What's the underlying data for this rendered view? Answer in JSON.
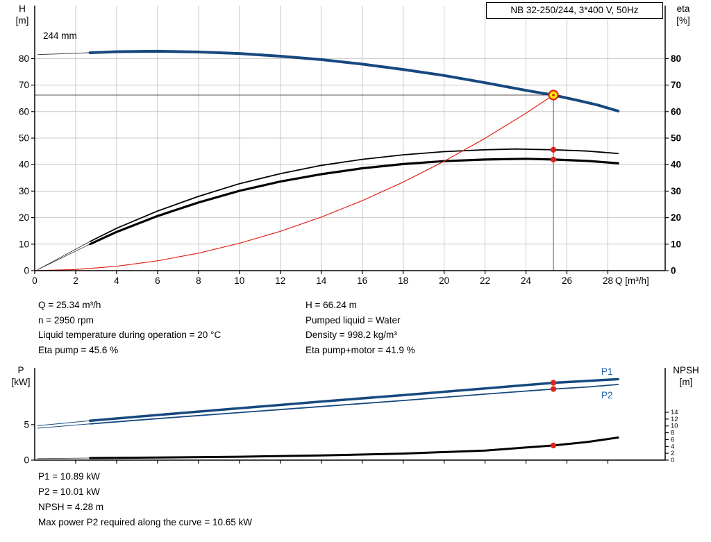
{
  "title_box": "NB 32-250/244, 3*400 V, 50Hz",
  "labels": {
    "top_left_axis": [
      "H",
      "[m]"
    ],
    "top_right_axis": [
      "eta",
      "[%]"
    ],
    "x_axis": "Q [m³/h]",
    "curve_size": "244 mm",
    "p1": "P1",
    "p2": "P2",
    "bottom_left_axis": [
      "P",
      "[kW]"
    ],
    "bottom_right_axis": [
      "NPSH",
      "[m]"
    ]
  },
  "info": {
    "left": [
      "Q = 25.34 m³/h",
      "n = 2950 rpm",
      "Liquid temperature during operation = 20 °C",
      "Eta pump = 45.6 %"
    ],
    "right": [
      "H = 66.24 m",
      "Pumped liquid = Water",
      "Density = 998.2 kg/m³",
      "Eta pump+motor = 41.9 %"
    ]
  },
  "footer": [
    "P1 = 10.89 kW",
    "P2 = 10.01 kW",
    "NPSH = 4.28 m",
    "Max power P2 required along the curve = 10.65 kW"
  ],
  "colors": {
    "curve_blue": "#17497f",
    "curve_black": "#000000",
    "system_red": "#e02318",
    "grid": "#c8c8c8",
    "guide": "#555555",
    "duty_fill": "#ffe800",
    "duty_ring": "#e02318",
    "label_blue": "#1f5fa8"
  },
  "chart_data": [
    {
      "type": "line",
      "title": "NB 32-250/244, 3*400 V, 50Hz",
      "xlabel": "Q [m³/h]",
      "ylabel_left": "H [m]",
      "ylabel_right": "eta [%]",
      "xlim": [
        0,
        30.8
      ],
      "ylim_left": [
        0,
        100
      ],
      "ylim_right": [
        0,
        100
      ],
      "grid": true,
      "x_ticks": [
        0,
        2,
        4,
        6,
        8,
        10,
        12,
        14,
        16,
        18,
        20,
        22,
        24,
        26,
        28
      ],
      "y_ticks_left": [
        0,
        10,
        20,
        30,
        40,
        50,
        60,
        70,
        80
      ],
      "y_ticks_right": [
        0,
        10,
        20,
        30,
        40,
        50,
        60,
        70,
        80
      ],
      "grid_x": true,
      "grid_y": [
        10,
        20,
        30,
        40,
        50,
        60,
        70,
        80
      ],
      "guides": [
        {
          "type": "v",
          "x": 25.34,
          "y0": 0,
          "y1": 66.24
        },
        {
          "type": "h",
          "y": 66.24,
          "x0": 0,
          "x1": 25.34
        }
      ],
      "series": [
        {
          "name": "head-244mm",
          "axis": "left",
          "color": "#17497f",
          "width": 4,
          "points": [
            [
              2.7,
              82.2
            ],
            [
              4,
              82.6
            ],
            [
              6,
              82.75
            ],
            [
              8,
              82.5
            ],
            [
              10,
              81.9
            ],
            [
              12,
              80.9
            ],
            [
              14,
              79.6
            ],
            [
              16,
              77.9
            ],
            [
              18,
              75.9
            ],
            [
              20,
              73.6
            ],
            [
              22,
              70.9
            ],
            [
              24,
              68.0
            ],
            [
              25.34,
              66.24
            ],
            [
              26.5,
              64.3
            ],
            [
              27.5,
              62.5
            ],
            [
              28.5,
              60.2
            ]
          ]
        },
        {
          "name": "head-extension",
          "axis": "left",
          "color": "#444444",
          "width": 1,
          "points": [
            [
              0.15,
              81.5
            ],
            [
              2.7,
              82.2
            ]
          ]
        },
        {
          "name": "eta-pump",
          "axis": "left",
          "color": "#000000",
          "width": 1.8,
          "points": [
            [
              2.7,
              11
            ],
            [
              4,
              16
            ],
            [
              6,
              22.5
            ],
            [
              8,
              28
            ],
            [
              10,
              32.8
            ],
            [
              12,
              36.6
            ],
            [
              14,
              39.7
            ],
            [
              16,
              42.0
            ],
            [
              18,
              43.7
            ],
            [
              20,
              44.9
            ],
            [
              22,
              45.6
            ],
            [
              23.5,
              45.9
            ],
            [
              25.34,
              45.6
            ],
            [
              27,
              45.1
            ],
            [
              28.5,
              44.2
            ]
          ]
        },
        {
          "name": "eta-pump-extension",
          "axis": "left",
          "color": "#333333",
          "width": 0.8,
          "points": [
            [
              0.15,
              0.4
            ],
            [
              2.7,
              11
            ]
          ]
        },
        {
          "name": "eta-pump-motor",
          "axis": "left",
          "color": "#000000",
          "width": 3.2,
          "points": [
            [
              2.7,
              10.0
            ],
            [
              4,
              14.6
            ],
            [
              6,
              20.6
            ],
            [
              8,
              25.7
            ],
            [
              10,
              30.1
            ],
            [
              12,
              33.6
            ],
            [
              14,
              36.4
            ],
            [
              16,
              38.6
            ],
            [
              18,
              40.2
            ],
            [
              20,
              41.3
            ],
            [
              22,
              41.9
            ],
            [
              24,
              42.2
            ],
            [
              25.34,
              41.9
            ],
            [
              27,
              41.4
            ],
            [
              28.5,
              40.5
            ]
          ]
        },
        {
          "name": "eta-pump-motor-extension",
          "axis": "left",
          "color": "#333333",
          "width": 0.8,
          "points": [
            [
              0.15,
              0.4
            ],
            [
              2.7,
              10.0
            ]
          ]
        },
        {
          "name": "system-curve",
          "axis": "left",
          "color": "#e02318",
          "width": 1.2,
          "points": [
            [
              0,
              0
            ],
            [
              2,
              0.41
            ],
            [
              4,
              1.65
            ],
            [
              6,
              3.71
            ],
            [
              8,
              6.6
            ],
            [
              10,
              10.31
            ],
            [
              12,
              14.85
            ],
            [
              14,
              20.21
            ],
            [
              16,
              26.4
            ],
            [
              18,
              33.41
            ],
            [
              20,
              41.25
            ],
            [
              22,
              49.91
            ],
            [
              24,
              59.4
            ],
            [
              25.34,
              66.24
            ]
          ]
        }
      ],
      "markers": [
        {
          "name": "duty-point",
          "x": 25.34,
          "y": 66.24,
          "axis": "left",
          "r": 6.5,
          "fill": "#ffe800",
          "stroke": "#e02318",
          "stroke_width": 2.2
        },
        {
          "name": "duty-point-center",
          "x": 25.34,
          "y": 66.24,
          "axis": "left",
          "r": 1.8,
          "fill": "#e02318"
        },
        {
          "name": "eta-pump-point",
          "x": 25.34,
          "y": 45.6,
          "axis": "left",
          "r": 4.2,
          "fill": "#e02318"
        },
        {
          "name": "eta-pump-motor-point",
          "x": 25.34,
          "y": 41.9,
          "axis": "left",
          "r": 4.2,
          "fill": "#e02318"
        }
      ]
    },
    {
      "type": "line",
      "title": "Power and NPSH",
      "xlabel": "Q [m³/h]",
      "ylabel_left": "P [kW]",
      "ylabel_right": "NPSH [m]",
      "xlim": [
        0,
        30.8
      ],
      "ylim_left": [
        0,
        13
      ],
      "ylim_right": [
        0,
        27
      ],
      "grid": false,
      "x_ticks": [
        2,
        4,
        6,
        8,
        10,
        12,
        14,
        16,
        18,
        20,
        22,
        24,
        26,
        28
      ],
      "y_ticks_left": [
        0,
        5
      ],
      "y_ticks_right": [
        0,
        2,
        4,
        6,
        8,
        10,
        12,
        14
      ],
      "grid_x": false,
      "grid_y": [],
      "guides": [],
      "series": [
        {
          "name": "p1",
          "axis": "left",
          "color": "#17497f",
          "width": 3.5,
          "points": [
            [
              2.7,
              5.55
            ],
            [
              6,
              6.35
            ],
            [
              10,
              7.3
            ],
            [
              14,
              8.25
            ],
            [
              18,
              9.15
            ],
            [
              22,
              10.1
            ],
            [
              25.34,
              10.89
            ],
            [
              27,
              11.15
            ],
            [
              28.5,
              11.4
            ]
          ]
        },
        {
          "name": "p1-extension",
          "axis": "left",
          "color": "#17497f",
          "width": 1,
          "points": [
            [
              0.15,
              4.85
            ],
            [
              2.7,
              5.55
            ]
          ]
        },
        {
          "name": "p2",
          "axis": "left",
          "color": "#17497f",
          "width": 1.8,
          "points": [
            [
              2.7,
              5.1
            ],
            [
              6,
              5.85
            ],
            [
              10,
              6.7
            ],
            [
              14,
              7.55
            ],
            [
              18,
              8.4
            ],
            [
              22,
              9.3
            ],
            [
              25.34,
              10.01
            ],
            [
              27,
              10.3
            ],
            [
              28.5,
              10.65
            ]
          ]
        },
        {
          "name": "p2-extension",
          "axis": "left",
          "color": "#17497f",
          "width": 1,
          "points": [
            [
              0.15,
              4.5
            ],
            [
              2.7,
              5.1
            ]
          ]
        },
        {
          "name": "npsh",
          "axis": "right",
          "color": "#000000",
          "width": 3,
          "points": [
            [
              2.7,
              0.6
            ],
            [
              6,
              0.75
            ],
            [
              10,
              1.0
            ],
            [
              14,
              1.35
            ],
            [
              18,
              1.9
            ],
            [
              22,
              2.8
            ],
            [
              25.34,
              4.28
            ],
            [
              27,
              5.3
            ],
            [
              28.5,
              6.6
            ]
          ]
        },
        {
          "name": "npsh-extension",
          "axis": "right",
          "color": "#333333",
          "width": 0.8,
          "points": [
            [
              0.15,
              0.45
            ],
            [
              2.7,
              0.6
            ]
          ]
        }
      ],
      "markers": [
        {
          "name": "p1-point",
          "x": 25.34,
          "y": 10.89,
          "axis": "left",
          "r": 4.2,
          "fill": "#e02318"
        },
        {
          "name": "p2-point",
          "x": 25.34,
          "y": 10.01,
          "axis": "left",
          "r": 4.2,
          "fill": "#e02318"
        },
        {
          "name": "npsh-point",
          "x": 25.34,
          "y": 4.28,
          "axis": "right",
          "r": 4.2,
          "fill": "#e02318"
        }
      ]
    }
  ]
}
